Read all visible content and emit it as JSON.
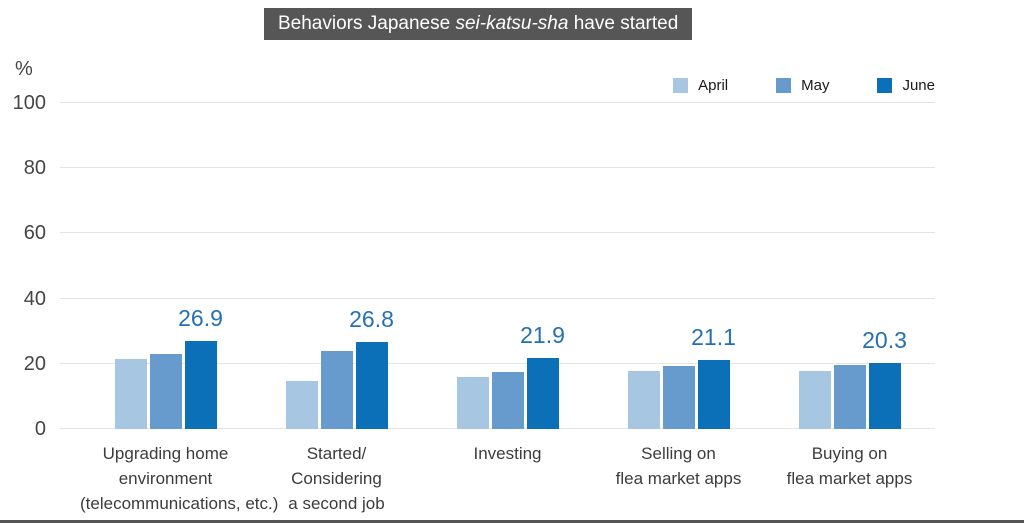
{
  "title": {
    "prefix": "Behaviors Japanese ",
    "italic": "sei-katsu-sha",
    "suffix": " have started"
  },
  "chart_data": {
    "type": "bar",
    "title": "Behaviors Japanese sei-katsu-sha have started",
    "ylabel": "%",
    "xlabel": "",
    "ylim": [
      0,
      100
    ],
    "yticks": [
      0,
      20,
      40,
      60,
      80,
      100
    ],
    "grid": true,
    "legend_position": "top-right",
    "categories": [
      "Upgrading home\nenvironment\n(telecommunications, etc.)",
      "Started/\nConsidering\na second job",
      "Investing",
      "Selling on\nflea market apps",
      "Buying on\nflea market apps"
    ],
    "series": [
      {
        "name": "April",
        "color": "#a7c6e2",
        "values": [
          21.4,
          14.8,
          16.0,
          17.9,
          17.7
        ]
      },
      {
        "name": "May",
        "color": "#689bcd",
        "values": [
          22.9,
          23.8,
          17.5,
          19.2,
          19.5
        ]
      },
      {
        "name": "June",
        "color": "#0c70b8",
        "values": [
          26.9,
          26.8,
          21.9,
          21.1,
          20.3
        ],
        "value_labels": true
      }
    ],
    "value_label_color": "#2371b4",
    "title_bg_color": "#565656",
    "gridline_color": "#e4e4e4"
  }
}
